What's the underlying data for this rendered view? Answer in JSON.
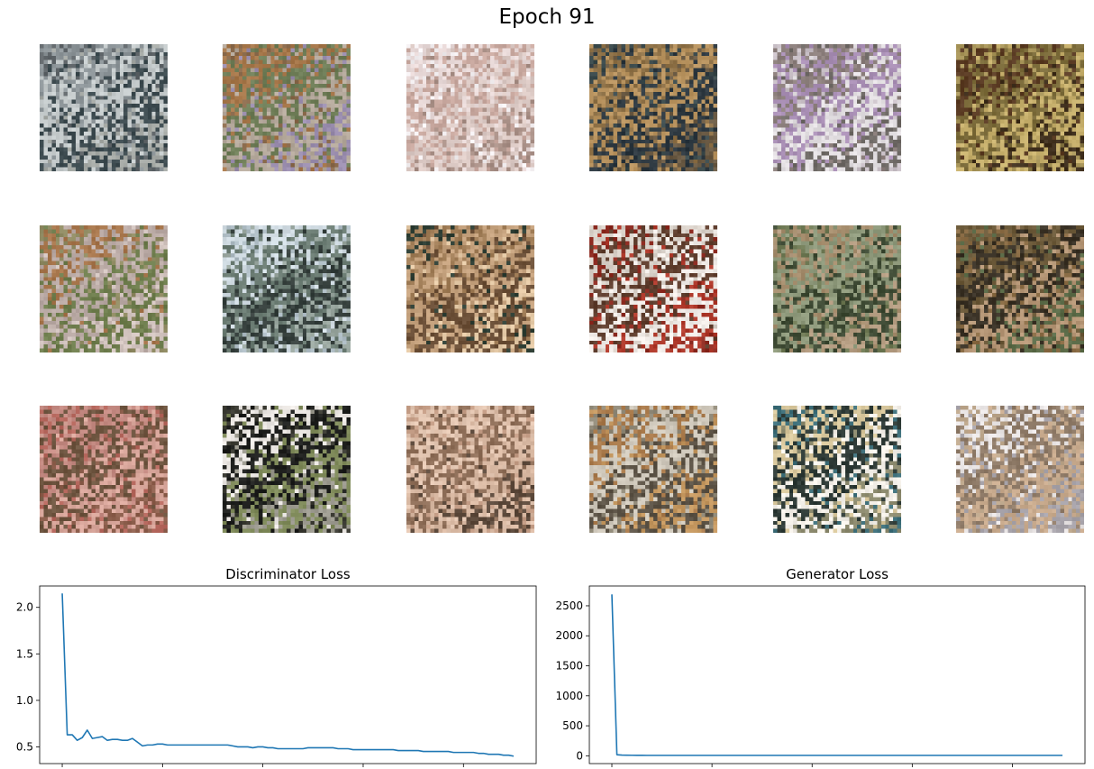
{
  "figure": {
    "title": "Epoch 91",
    "samples": [
      {
        "palette": [
          "#5f6569",
          "#8d9599",
          "#c5cbcc",
          "#3c4a4f",
          "#a6aaa6"
        ]
      },
      {
        "palette": [
          "#8a6a4c",
          "#a6774a",
          "#6e7d57",
          "#b5a99c",
          "#9a8dae"
        ]
      },
      {
        "palette": [
          "#f3eff1",
          "#e8d9d8",
          "#c9a9a0",
          "#dccac5",
          "#a88f86"
        ]
      },
      {
        "palette": [
          "#3b4a4c",
          "#8f7248",
          "#b7925e",
          "#2d3840",
          "#6a5a44"
        ]
      },
      {
        "palette": [
          "#c9c0c7",
          "#8c7f7c",
          "#a98fb5",
          "#e3dfe2",
          "#6f6a66"
        ]
      },
      {
        "palette": [
          "#a8955a",
          "#5b3c24",
          "#7c6c3b",
          "#c7b06d",
          "#3f2f1d"
        ]
      },
      {
        "palette": [
          "#8f8a62",
          "#a7764c",
          "#b9a9a4",
          "#6e7d4d",
          "#d2c4bf"
        ]
      },
      {
        "palette": [
          "#aebcc4",
          "#d2dde4",
          "#6b7c73",
          "#36403d",
          "#9aa7a0"
        ]
      },
      {
        "palette": [
          "#2f3f35",
          "#a07d57",
          "#c5a27e",
          "#6b4f37",
          "#e4c9a6"
        ]
      },
      {
        "palette": [
          "#8c2a20",
          "#d8d0c8",
          "#5f3e2e",
          "#f1ece8",
          "#b03a2c"
        ]
      },
      {
        "palette": [
          "#6f7a55",
          "#a48c6c",
          "#8f9a7c",
          "#3e4a34",
          "#b59d82"
        ]
      },
      {
        "palette": [
          "#8a6c45",
          "#6c5a3a",
          "#3a3226",
          "#b69777",
          "#5a6a47"
        ]
      },
      {
        "palette": [
          "#b5675d",
          "#c58b83",
          "#6e5540",
          "#d9a79c",
          "#8c5e4c"
        ]
      },
      {
        "palette": [
          "#3a3a32",
          "#ece8e4",
          "#1e1f1d",
          "#7f8a5a",
          "#9d9b90"
        ]
      },
      {
        "palette": [
          "#c49d86",
          "#e3c6b2",
          "#8e6e58",
          "#d8b8a2",
          "#5d4a3c"
        ]
      },
      {
        "palette": [
          "#8f8877",
          "#a97a4b",
          "#d0c9bc",
          "#5c5346",
          "#c4975f"
        ]
      },
      {
        "palette": [
          "#3e6f7a",
          "#d8c79c",
          "#2e3a36",
          "#f4f0e9",
          "#8c8a6e"
        ]
      },
      {
        "palette": [
          "#bda78c",
          "#e9e5e5",
          "#8f7b68",
          "#c8aa8d",
          "#a7a3aa"
        ]
      }
    ]
  },
  "chart_data": [
    {
      "type": "line",
      "title": "Discriminator Loss",
      "xlabel": "",
      "ylabel": "",
      "xlim": [
        -4.5,
        94.5
      ],
      "ylim": [
        0.32,
        2.23
      ],
      "xticks": [
        0,
        20,
        40,
        60,
        80
      ],
      "yticks": [
        0.5,
        1.0,
        1.5,
        2.0
      ],
      "ytick_labels": [
        "0.5",
        "1.0",
        "1.5",
        "2.0"
      ],
      "color": "#1f77b4",
      "grid": false,
      "series": [
        {
          "values": [
            2.15,
            0.63,
            0.63,
            0.57,
            0.6,
            0.68,
            0.59,
            0.6,
            0.61,
            0.57,
            0.58,
            0.58,
            0.57,
            0.57,
            0.59,
            0.55,
            0.51,
            0.52,
            0.52,
            0.53,
            0.53,
            0.52,
            0.52,
            0.52,
            0.52,
            0.52,
            0.52,
            0.52,
            0.52,
            0.52,
            0.52,
            0.52,
            0.52,
            0.52,
            0.51,
            0.5,
            0.5,
            0.5,
            0.49,
            0.5,
            0.5,
            0.49,
            0.49,
            0.48,
            0.48,
            0.48,
            0.48,
            0.48,
            0.48,
            0.49,
            0.49,
            0.49,
            0.49,
            0.49,
            0.49,
            0.48,
            0.48,
            0.48,
            0.47,
            0.47,
            0.47,
            0.47,
            0.47,
            0.47,
            0.47,
            0.47,
            0.47,
            0.46,
            0.46,
            0.46,
            0.46,
            0.46,
            0.45,
            0.45,
            0.45,
            0.45,
            0.45,
            0.45,
            0.44,
            0.44,
            0.44,
            0.44,
            0.44,
            0.43,
            0.43,
            0.42,
            0.42,
            0.42,
            0.41,
            0.41,
            0.4
          ]
        }
      ]
    },
    {
      "type": "line",
      "title": "Generator Loss",
      "xlabel": "",
      "ylabel": "",
      "xlim": [
        -4.5,
        94.5
      ],
      "ylim": [
        -130,
        2830
      ],
      "xticks": [
        0,
        20,
        40,
        60,
        80
      ],
      "yticks": [
        0,
        500,
        1000,
        1500,
        2000,
        2500
      ],
      "ytick_labels": [
        "0",
        "500",
        "1000",
        "1500",
        "2000",
        "2500"
      ],
      "color": "#1f77b4",
      "grid": false,
      "series": [
        {
          "values": [
            2690,
            18,
            12,
            10,
            9,
            8,
            8,
            7,
            7,
            7,
            7,
            7,
            7,
            7,
            7,
            7,
            7,
            7,
            7,
            7,
            7,
            7,
            7,
            7,
            7,
            7,
            7,
            7,
            7,
            7,
            7,
            7,
            7,
            7,
            7,
            7,
            7,
            7,
            7,
            7,
            7,
            7,
            7,
            7,
            7,
            7,
            7,
            7,
            7,
            7,
            7,
            7,
            7,
            7,
            7,
            7,
            7,
            7,
            7,
            7,
            7,
            7,
            7,
            7,
            7,
            7,
            7,
            7,
            7,
            7,
            7,
            7,
            7,
            7,
            7,
            7,
            7,
            7,
            7,
            7,
            7,
            7,
            7,
            7,
            7,
            7,
            7,
            7,
            7,
            7,
            7
          ]
        }
      ]
    }
  ]
}
